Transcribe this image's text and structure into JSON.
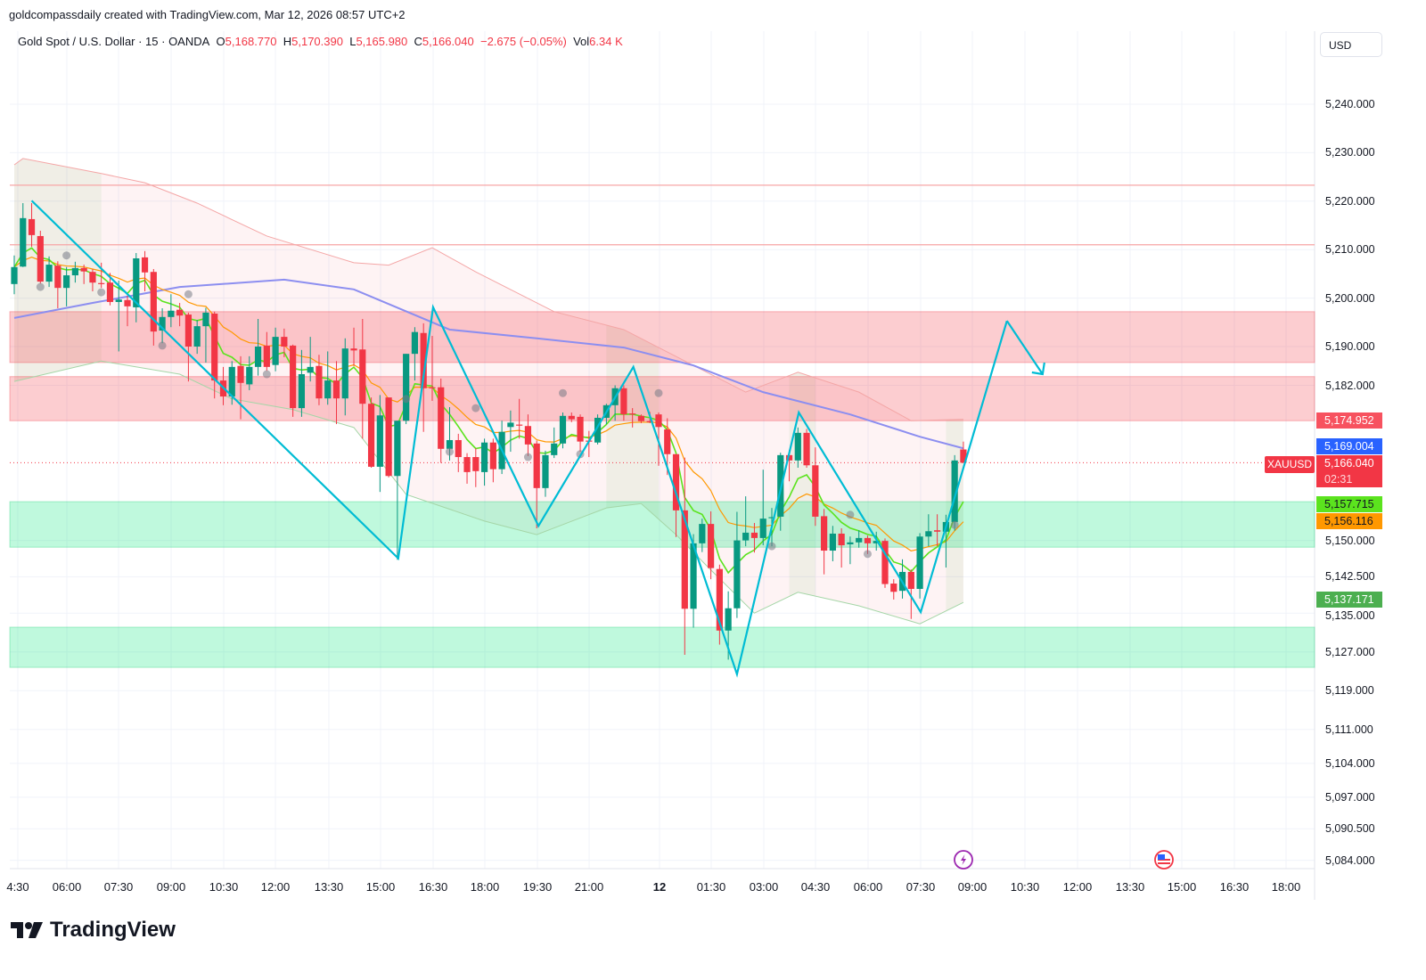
{
  "credit": "goldcompassdaily created with TradingView.com, Mar 12, 2026 08:57 UTC+2",
  "legend": {
    "symbol": "Gold Spot / U.S. Dollar · 15 · OANDA",
    "o_label": "O",
    "o": "5,168.770",
    "h_label": "H",
    "h": "5,170.390",
    "l_label": "L",
    "l": "5,165.980",
    "c_label": "C",
    "c": "5,166.040",
    "change": "−2.675 (−0.05%)",
    "vol_label": "Vol",
    "vol": "6.34 K"
  },
  "currency": "USD",
  "price_axis": [
    "5,240.000",
    "5,230.000",
    "5,220.000",
    "5,210.000",
    "5,200.000",
    "5,190.000",
    "5,182.000",
    "5,166.040",
    "5,150.000",
    "5,142.500",
    "5,135.000",
    "5,127.000",
    "5,119.000",
    "5,111.000",
    "5,104.000",
    "5,097.000",
    "5,090.500",
    "5,084.000"
  ],
  "badges": {
    "level_red": {
      "text": "5,174.952",
      "color": "#f7525f"
    },
    "ma_blue": {
      "text": "5,169.004",
      "color": "#2962ff"
    },
    "last": {
      "text": "5,166.040",
      "countdown": "02:31",
      "color": "#f23645"
    },
    "ema_fast": {
      "text": "5,157.715",
      "color": "#5be31e"
    },
    "ema_slow": {
      "text": "5,156.116",
      "color": "#ff9800"
    },
    "lower_band": {
      "text": "5,137.171",
      "color": "#4caf50"
    },
    "symbol": "XAUUSD"
  },
  "time_axis": [
    "4:30",
    "06:00",
    "07:30",
    "09:00",
    "10:30",
    "12:00",
    "13:30",
    "15:00",
    "16:30",
    "18:00",
    "19:30",
    "21:00",
    "12",
    "01:30",
    "03:00",
    "04:30",
    "06:00",
    "07:30",
    "09:00",
    "10:30",
    "12:00",
    "13:30",
    "15:00",
    "16:30",
    "18:00"
  ],
  "events": [
    {
      "icon": "lightning-icon"
    },
    {
      "icon": "us-flag-icon"
    }
  ],
  "brand": "TradingView",
  "chart_data": {
    "type": "candlestick",
    "interval_minutes": 15,
    "y_range": [
      5082,
      5249.5
    ],
    "grid": true,
    "colors": {
      "up": "#089981",
      "down": "#f23645",
      "zigzag": "#00bcd4",
      "ma_long": "#8c8ef0",
      "ema_fast": "#5be31e",
      "ema_slow": "#ff9800",
      "upper_band": "#f4a6a6",
      "lower_band": "#a5d6a7"
    },
    "ohlc": [
      [
        5202.9,
        5208.8,
        5200.8,
        5206.4
      ],
      [
        5206.5,
        5219.6,
        5206.4,
        5216.5
      ],
      [
        5216.3,
        5219.6,
        5210.6,
        5213.0
      ],
      [
        5212.8,
        5213.9,
        5203.0,
        5203.4
      ],
      [
        5203.4,
        5208.6,
        5202.3,
        5206.9
      ],
      [
        5206.7,
        5207.6,
        5197.9,
        5202.1
      ],
      [
        5202.1,
        5206.4,
        5198.3,
        5204.7
      ],
      [
        5204.7,
        5207.5,
        5203.2,
        5206.2
      ],
      [
        5206.2,
        5206.9,
        5202.9,
        5205.5
      ],
      [
        5205.4,
        5206.0,
        5201.4,
        5203.2
      ],
      [
        5203.1,
        5207.3,
        5202.1,
        5203.0
      ],
      [
        5203.2,
        5205.2,
        5198.5,
        5199.2
      ],
      [
        5199.2,
        5203.6,
        5189.0,
        5199.7
      ],
      [
        5199.6,
        5200.5,
        5194.2,
        5198.3
      ],
      [
        5198.1,
        5209.3,
        5195.0,
        5208.2
      ],
      [
        5208.4,
        5209.7,
        5201.4,
        5205.3
      ],
      [
        5205.4,
        5206.0,
        5190.2,
        5193.1
      ],
      [
        5193.3,
        5197.9,
        5190.7,
        5196.1
      ],
      [
        5196.1,
        5200.8,
        5194.0,
        5197.4
      ],
      [
        5197.6,
        5199.0,
        5194.2,
        5196.4
      ],
      [
        5196.6,
        5197.0,
        5182.8,
        5190.0
      ],
      [
        5190.0,
        5195.5,
        5188.5,
        5194.2
      ],
      [
        5194.2,
        5198.0,
        5186.7,
        5197.0
      ],
      [
        5196.8,
        5197.2,
        5179.3,
        5183.0
      ],
      [
        5183.0,
        5185.8,
        5177.9,
        5179.7
      ],
      [
        5179.7,
        5187.0,
        5178.0,
        5185.8
      ],
      [
        5186.0,
        5188.0,
        5175.0,
        5182.5
      ],
      [
        5182.2,
        5188.0,
        5181.0,
        5185.8
      ],
      [
        5185.8,
        5195.7,
        5184.0,
        5190.0
      ],
      [
        5190.2,
        5193.0,
        5185.0,
        5185.8
      ],
      [
        5186.2,
        5193.9,
        5184.9,
        5192.0
      ],
      [
        5192.0,
        5193.7,
        5187.8,
        5190.0
      ],
      [
        5190.2,
        5190.4,
        5175.5,
        5177.3
      ],
      [
        5177.3,
        5189.3,
        5175.5,
        5184.3
      ],
      [
        5184.6,
        5192.0,
        5182.8,
        5185.8
      ],
      [
        5186.0,
        5188.3,
        5177.9,
        5179.3
      ],
      [
        5179.3,
        5189.0,
        5178.0,
        5183.0
      ],
      [
        5183.0,
        5187.0,
        5174.0,
        5179.3
      ],
      [
        5179.3,
        5191.7,
        5175.8,
        5189.6
      ],
      [
        5189.6,
        5193.9,
        5186.0,
        5189.2
      ],
      [
        5189.4,
        5195.7,
        5171.0,
        5178.2
      ],
      [
        5178.2,
        5179.5,
        5165.0,
        5165.2
      ],
      [
        5165.2,
        5180.0,
        5160.0,
        5175.8
      ],
      [
        5179.5,
        5179.5,
        5163.0,
        5163.3
      ],
      [
        5163.3,
        5174.7,
        5146.0,
        5174.7
      ],
      [
        5174.7,
        5188.5,
        5174.0,
        5188.5
      ],
      [
        5188.5,
        5194.0,
        5183.0,
        5193.0
      ],
      [
        5192.8,
        5194.8,
        5172.4,
        5181.4
      ],
      [
        5181.6,
        5192.2,
        5178.8,
        5181.4
      ],
      [
        5181.6,
        5183.4,
        5166.0,
        5168.9
      ],
      [
        5168.9,
        5177.5,
        5166.5,
        5170.7
      ],
      [
        5170.7,
        5172.0,
        5164.1,
        5167.2
      ],
      [
        5167.2,
        5168.0,
        5161.7,
        5164.1
      ],
      [
        5167.2,
        5169.0,
        5161.0,
        5164.3
      ],
      [
        5164.1,
        5171.0,
        5161.3,
        5170.2
      ],
      [
        5170.2,
        5171.0,
        5162.0,
        5164.7
      ],
      [
        5164.7,
        5174.7,
        5163.7,
        5172.4
      ],
      [
        5173.4,
        5176.8,
        5168.3,
        5174.3
      ],
      [
        5173.9,
        5179.2,
        5171.0,
        5173.7
      ],
      [
        5173.6,
        5176.0,
        5167.4,
        5169.8
      ],
      [
        5170.0,
        5170.6,
        5152.5,
        5160.8
      ],
      [
        5160.8,
        5168.5,
        5159.0,
        5167.6
      ],
      [
        5167.6,
        5173.3,
        5167.0,
        5170.0
      ],
      [
        5170.0,
        5176.4,
        5169.0,
        5175.7
      ],
      [
        5175.7,
        5176.4,
        5174.4,
        5175.0
      ],
      [
        5175.5,
        5176.0,
        5168.3,
        5170.4
      ],
      [
        5170.6,
        5172.6,
        5167.2,
        5170.4
      ],
      [
        5170.2,
        5176.0,
        5169.8,
        5175.3
      ],
      [
        5175.3,
        5178.2,
        5174.0,
        5177.9
      ],
      [
        5177.9,
        5182.0,
        5174.7,
        5181.4
      ],
      [
        5181.4,
        5182.0,
        5174.7,
        5176.0
      ],
      [
        5176.2,
        5177.3,
        5173.3,
        5176.1
      ],
      [
        5175.7,
        5176.0,
        5174.2,
        5174.6
      ],
      [
        5174.6,
        5176.5,
        5174.2,
        5174.5
      ],
      [
        5176.0,
        5176.4,
        5165.4,
        5173.4
      ],
      [
        5172.9,
        5175.2,
        5163.5,
        5167.8
      ],
      [
        5167.8,
        5167.8,
        5150.7,
        5156.2
      ],
      [
        5156.2,
        5167.1,
        5126.4,
        5135.9
      ],
      [
        5135.9,
        5151.3,
        5132.0,
        5149.4
      ],
      [
        5149.4,
        5154.5,
        5147.6,
        5153.4
      ],
      [
        5153.4,
        5156.0,
        5142.0,
        5144.3
      ],
      [
        5144.1,
        5145.0,
        5128.5,
        5131.4
      ],
      [
        5131.4,
        5139.5,
        5125.4,
        5136.0
      ],
      [
        5136.0,
        5155.9,
        5134.0,
        5150.0
      ],
      [
        5150.0,
        5159.1,
        5148.8,
        5151.6
      ],
      [
        5151.6,
        5153.6,
        5147.5,
        5150.5
      ],
      [
        5150.5,
        5164.6,
        5149.0,
        5154.5
      ],
      [
        5154.6,
        5156.7,
        5148.8,
        5154.8
      ],
      [
        5154.9,
        5168.1,
        5152.0,
        5167.6
      ],
      [
        5167.6,
        5168.7,
        5162.2,
        5166.5
      ],
      [
        5166.5,
        5173.3,
        5165.0,
        5172.2
      ],
      [
        5172.2,
        5173.0,
        5165.0,
        5165.5
      ],
      [
        5165.5,
        5169.2,
        5153.0,
        5154.9
      ],
      [
        5155.0,
        5156.5,
        5143.0,
        5147.9
      ],
      [
        5147.9,
        5153.0,
        5145.7,
        5151.4
      ],
      [
        5151.4,
        5152.5,
        5144.4,
        5149.0
      ],
      [
        5149.2,
        5150.8,
        5145.1,
        5149.6
      ],
      [
        5149.6,
        5152.1,
        5148.5,
        5150.5
      ],
      [
        5150.5,
        5151.0,
        5147.2,
        5149.4
      ],
      [
        5149.4,
        5151.8,
        5147.9,
        5149.9
      ],
      [
        5149.9,
        5150.4,
        5140.2,
        5141.0
      ],
      [
        5141.1,
        5142.0,
        5137.8,
        5139.4
      ],
      [
        5139.6,
        5146.1,
        5138.0,
        5143.5
      ],
      [
        5143.5,
        5144.0,
        5133.8,
        5140.0
      ],
      [
        5140.0,
        5151.5,
        5138.0,
        5150.8
      ],
      [
        5150.8,
        5155.4,
        5148.8,
        5151.9
      ],
      [
        5152.1,
        5155.4,
        5148.8,
        5151.8
      ],
      [
        5151.8,
        5155.3,
        5144.4,
        5153.8
      ],
      [
        5153.8,
        5167.6,
        5152.0,
        5166.5
      ],
      [
        5168.77,
        5170.39,
        5165.98,
        5166.04
      ]
    ],
    "ma_long": [
      [
        0,
        5195.9
      ],
      [
        9,
        5199.0
      ],
      [
        19,
        5202.3
      ],
      [
        31,
        5203.8
      ],
      [
        39,
        5201.8
      ],
      [
        50,
        5193.5
      ],
      [
        60,
        5191.7
      ],
      [
        70,
        5189.8
      ],
      [
        78,
        5186.1
      ],
      [
        86,
        5180.6
      ],
      [
        96,
        5176.0
      ],
      [
        104,
        5171.4
      ],
      [
        109,
        5169.0
      ]
    ],
    "upper_band": [
      [
        0,
        5227.5
      ],
      [
        1,
        5228.8
      ],
      [
        10,
        5225.7
      ],
      [
        15,
        5223.8
      ],
      [
        21,
        5219.6
      ],
      [
        29,
        5212.8
      ],
      [
        39,
        5207.3
      ],
      [
        43,
        5206.8
      ],
      [
        48,
        5210.4
      ],
      [
        53,
        5205.4
      ],
      [
        62,
        5197.2
      ],
      [
        70,
        5193.5
      ],
      [
        78,
        5186.1
      ],
      [
        84,
        5180.6
      ],
      [
        90,
        5184.7
      ],
      [
        97,
        5180.6
      ],
      [
        103,
        5174.7
      ],
      [
        109,
        5175.0
      ]
    ],
    "lower_band": [
      [
        0,
        5182.8
      ],
      [
        10,
        5187.0
      ],
      [
        19,
        5184.3
      ],
      [
        25,
        5179.2
      ],
      [
        32,
        5177.0
      ],
      [
        39,
        5173.3
      ],
      [
        45,
        5159.5
      ],
      [
        54,
        5154.0
      ],
      [
        60,
        5151.2
      ],
      [
        68,
        5156.7
      ],
      [
        72,
        5157.6
      ],
      [
        76,
        5151.2
      ],
      [
        80,
        5143.9
      ],
      [
        85,
        5135.0
      ],
      [
        90,
        5139.3
      ],
      [
        97,
        5136.5
      ],
      [
        104,
        5132.8
      ],
      [
        109,
        5137.2
      ]
    ],
    "fractal_dots": [
      [
        3,
        5202.3
      ],
      [
        6,
        5208.8
      ],
      [
        10,
        5201.2
      ],
      [
        17,
        5190.2
      ],
      [
        20,
        5200.8
      ],
      [
        29,
        5184.3
      ],
      [
        45,
        5179.2
      ],
      [
        50,
        5168.3
      ],
      [
        53,
        5177.3
      ],
      [
        59,
        5167.2
      ],
      [
        63,
        5180.4
      ],
      [
        65,
        5167.8
      ],
      [
        74,
        5180.4
      ],
      [
        87,
        5148.8
      ],
      [
        96,
        5155.3
      ],
      [
        98,
        5147.2
      ],
      [
        108,
        5153.2
      ]
    ],
    "zigzag": [
      [
        2,
        5220.1
      ],
      [
        44.1,
        5146.3
      ],
      [
        48.1,
        5198.1
      ],
      [
        60.2,
        5153.0
      ],
      [
        71.1,
        5185.8
      ],
      [
        83,
        5122.4
      ],
      [
        90.1,
        5176.4
      ],
      [
        104.1,
        5135.2
      ],
      [
        114,
        5195.3
      ],
      [
        118.1,
        5184.3
      ]
    ],
    "resistance_zones": [
      [
        5186.7,
        5197.2
      ],
      [
        5174.7,
        5183.8
      ]
    ],
    "support_zones": [
      [
        5148.6,
        5158.0
      ],
      [
        5123.8,
        5132.1
      ]
    ],
    "resistance_lines": [
      5223.3,
      5211.0
    ],
    "last_price": 5166.04
  }
}
